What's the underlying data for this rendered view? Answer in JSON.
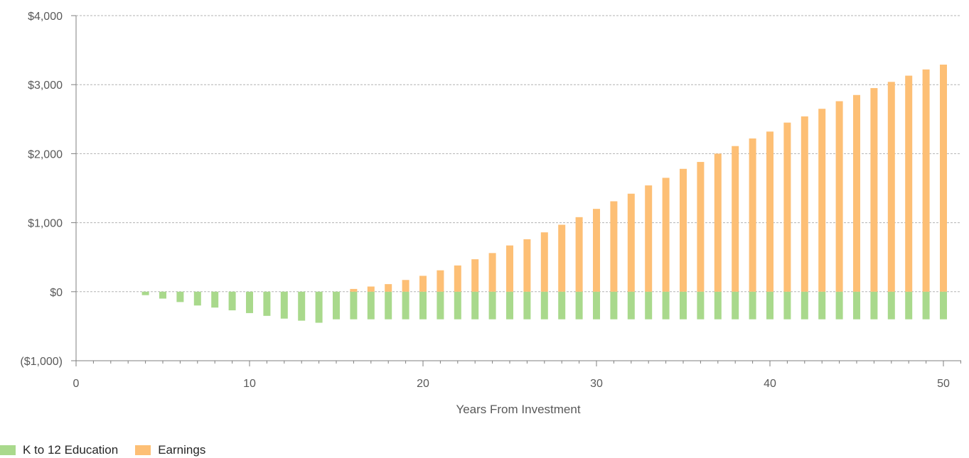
{
  "chart_data": {
    "type": "bar",
    "stacked": true,
    "xlabel": "Years From Investment",
    "ylabel": "",
    "title": "",
    "xlim": [
      0,
      51
    ],
    "ylim": [
      -1000,
      4000
    ],
    "x_ticks": [
      0,
      10,
      20,
      30,
      40,
      50
    ],
    "y_ticks": [
      {
        "value": -1000,
        "label": "($1,000)"
      },
      {
        "value": 0,
        "label": "$0"
      },
      {
        "value": 1000,
        "label": "$1,000"
      },
      {
        "value": 2000,
        "label": "$2,000"
      },
      {
        "value": 3000,
        "label": "$3,000"
      },
      {
        "value": 4000,
        "label": "$4,000"
      }
    ],
    "grid": "horizontal dashed",
    "legend_position": "bottom-left",
    "x": [
      4,
      5,
      6,
      7,
      8,
      9,
      10,
      11,
      12,
      13,
      14,
      15,
      16,
      17,
      18,
      19,
      20,
      21,
      22,
      23,
      24,
      25,
      26,
      27,
      28,
      29,
      30,
      31,
      32,
      33,
      34,
      35,
      36,
      37,
      38,
      39,
      40,
      41,
      42,
      43,
      44,
      45,
      46,
      47,
      48,
      49,
      50
    ],
    "series": [
      {
        "name": "K to 12 Education",
        "color": "#a9d98c",
        "values": [
          -50,
          -100,
          -150,
          -200,
          -230,
          -270,
          -310,
          -350,
          -390,
          -420,
          -450,
          -400,
          -400,
          -400,
          -400,
          -400,
          -400,
          -400,
          -400,
          -400,
          -400,
          -400,
          -400,
          -400,
          -400,
          -400,
          -400,
          -400,
          -400,
          -400,
          -400,
          -400,
          -400,
          -400,
          -400,
          -400,
          -400,
          -400,
          -400,
          -400,
          -400,
          -400,
          -400,
          -400,
          -400,
          -400,
          -400
        ]
      },
      {
        "name": "Earnings",
        "color": "#fdbf75",
        "values": [
          0,
          0,
          0,
          0,
          0,
          0,
          0,
          0,
          0,
          0,
          0,
          0,
          40,
          75,
          110,
          170,
          230,
          310,
          380,
          470,
          560,
          670,
          760,
          860,
          970,
          1080,
          1200,
          1310,
          1420,
          1540,
          1650,
          1780,
          1880,
          2000,
          2110,
          2220,
          2320,
          2450,
          2540,
          2650,
          2760,
          2850,
          2950,
          3040,
          3130,
          3220,
          3290
        ]
      }
    ]
  }
}
